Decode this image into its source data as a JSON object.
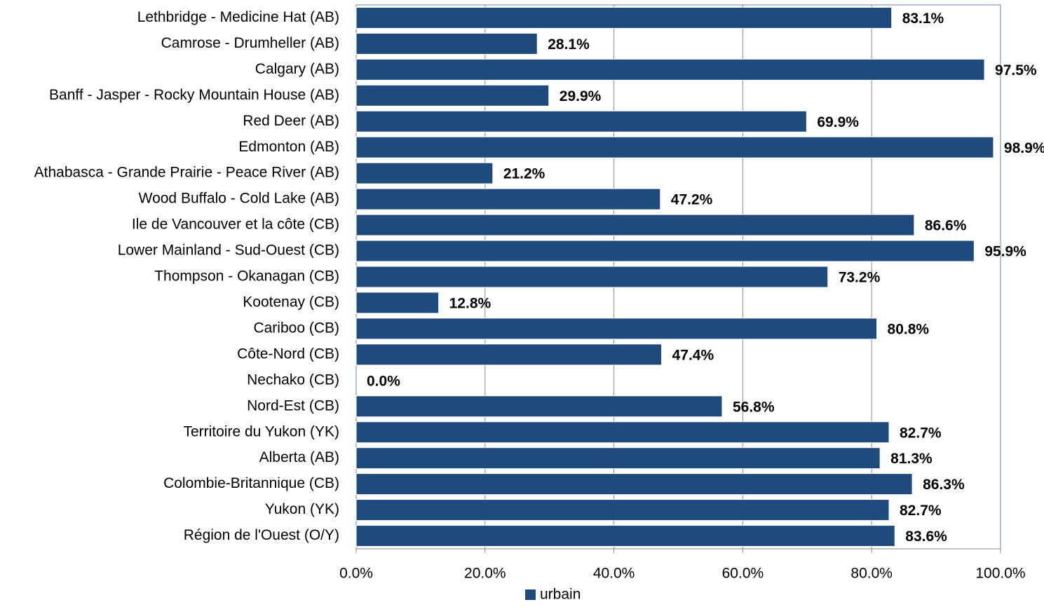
{
  "chart_data": {
    "type": "hbar",
    "categories": [
      "Lethbridge - Medicine Hat (AB)",
      "Camrose - Drumheller (AB)",
      "Calgary (AB)",
      "Banff - Jasper - Rocky Mountain House (AB)",
      "Red Deer (AB)",
      "Edmonton (AB)",
      "Athabasca - Grande Prairie - Peace River (AB)",
      "Wood Buffalo - Cold Lake (AB)",
      "Ile de Vancouver et la côte (CB)",
      "Lower Mainland - Sud-Ouest (CB)",
      "Thompson - Okanagan (CB)",
      "Kootenay (CB)",
      "Cariboo (CB)",
      "Côte-Nord (CB)",
      "Nechako (CB)",
      "Nord-Est (CB)",
      "Territoire du Yukon (YK)",
      "Alberta (AB)",
      "Colombie-Britannique (CB)",
      "Yukon (YK)",
      "Région de l'Ouest (O/Y)"
    ],
    "series": [
      {
        "name": "urbain",
        "color": "#1f4a7c",
        "values": [
          83.1,
          28.1,
          97.5,
          29.9,
          69.9,
          98.9,
          21.2,
          47.2,
          86.6,
          95.9,
          73.2,
          12.8,
          80.8,
          47.4,
          0.0,
          56.8,
          82.7,
          81.3,
          86.3,
          82.7,
          83.6
        ],
        "value_labels": [
          "83.1%",
          "28.1%",
          "97.5%",
          "29.9%",
          "69.9%",
          "98.9%",
          "21.2%",
          "47.2%",
          "86.6%",
          "95.9%",
          "73.2%",
          "12.8%",
          "80.8%",
          "47.4%",
          "0.0%",
          "56.8%",
          "82.7%",
          "81.3%",
          "86.3%",
          "82.7%",
          "83.6%"
        ]
      }
    ],
    "xlim": [
      0,
      100
    ],
    "xticks": [
      {
        "value": 0,
        "label": "0.0%"
      },
      {
        "value": 20,
        "label": "20.0%"
      },
      {
        "value": 40,
        "label": "40.0%"
      },
      {
        "value": 60,
        "label": "60.0%"
      },
      {
        "value": 80,
        "label": "80.0%"
      },
      {
        "value": 100,
        "label": "100.0%"
      }
    ],
    "grid": true,
    "legend": "bottom"
  }
}
